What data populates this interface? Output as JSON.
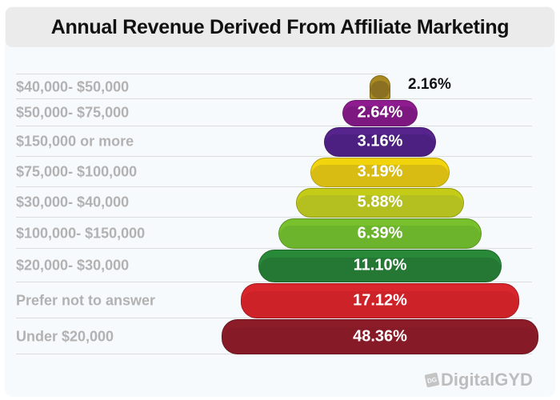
{
  "chart_data": {
    "type": "bar",
    "orientation": "horizontal-pyramid",
    "title": "Annual Revenue Derived From Affiliate Marketing",
    "unit": "%",
    "categories": [
      "$40,000- $50,000",
      "$50,000- $75,000",
      "$150,000 or more",
      "$75,000- $100,000",
      "$30,000- $40,000",
      "$100,000- $150,000",
      "$20,000- $30,000",
      "Prefer not to answer",
      "Under $20,000"
    ],
    "values": [
      2.16,
      2.64,
      3.16,
      3.19,
      5.88,
      6.39,
      11.1,
      17.12,
      48.36
    ],
    "value_labels": [
      "2.16%",
      "2.64%",
      "3.16%",
      "3.19%",
      "5.88%",
      "6.39%",
      "11.10%",
      "17.12%",
      "48.36%"
    ],
    "colors": [
      "#a88a20",
      "#8e1c8e",
      "#56248c",
      "#f2d40c",
      "#c4cc18",
      "#78c02c",
      "#288a38",
      "#d8262c",
      "#8c1c28"
    ],
    "shade_colors": [
      "#8a7020",
      "#7c1880",
      "#4c2080",
      "#d8bc14",
      "#b4c020",
      "#6cb42c",
      "#247834",
      "#cc2228",
      "#861a26"
    ],
    "legend": "none",
    "grid": "row separators"
  },
  "watermark": "DigitalGYD",
  "watermark_mark": "DG"
}
